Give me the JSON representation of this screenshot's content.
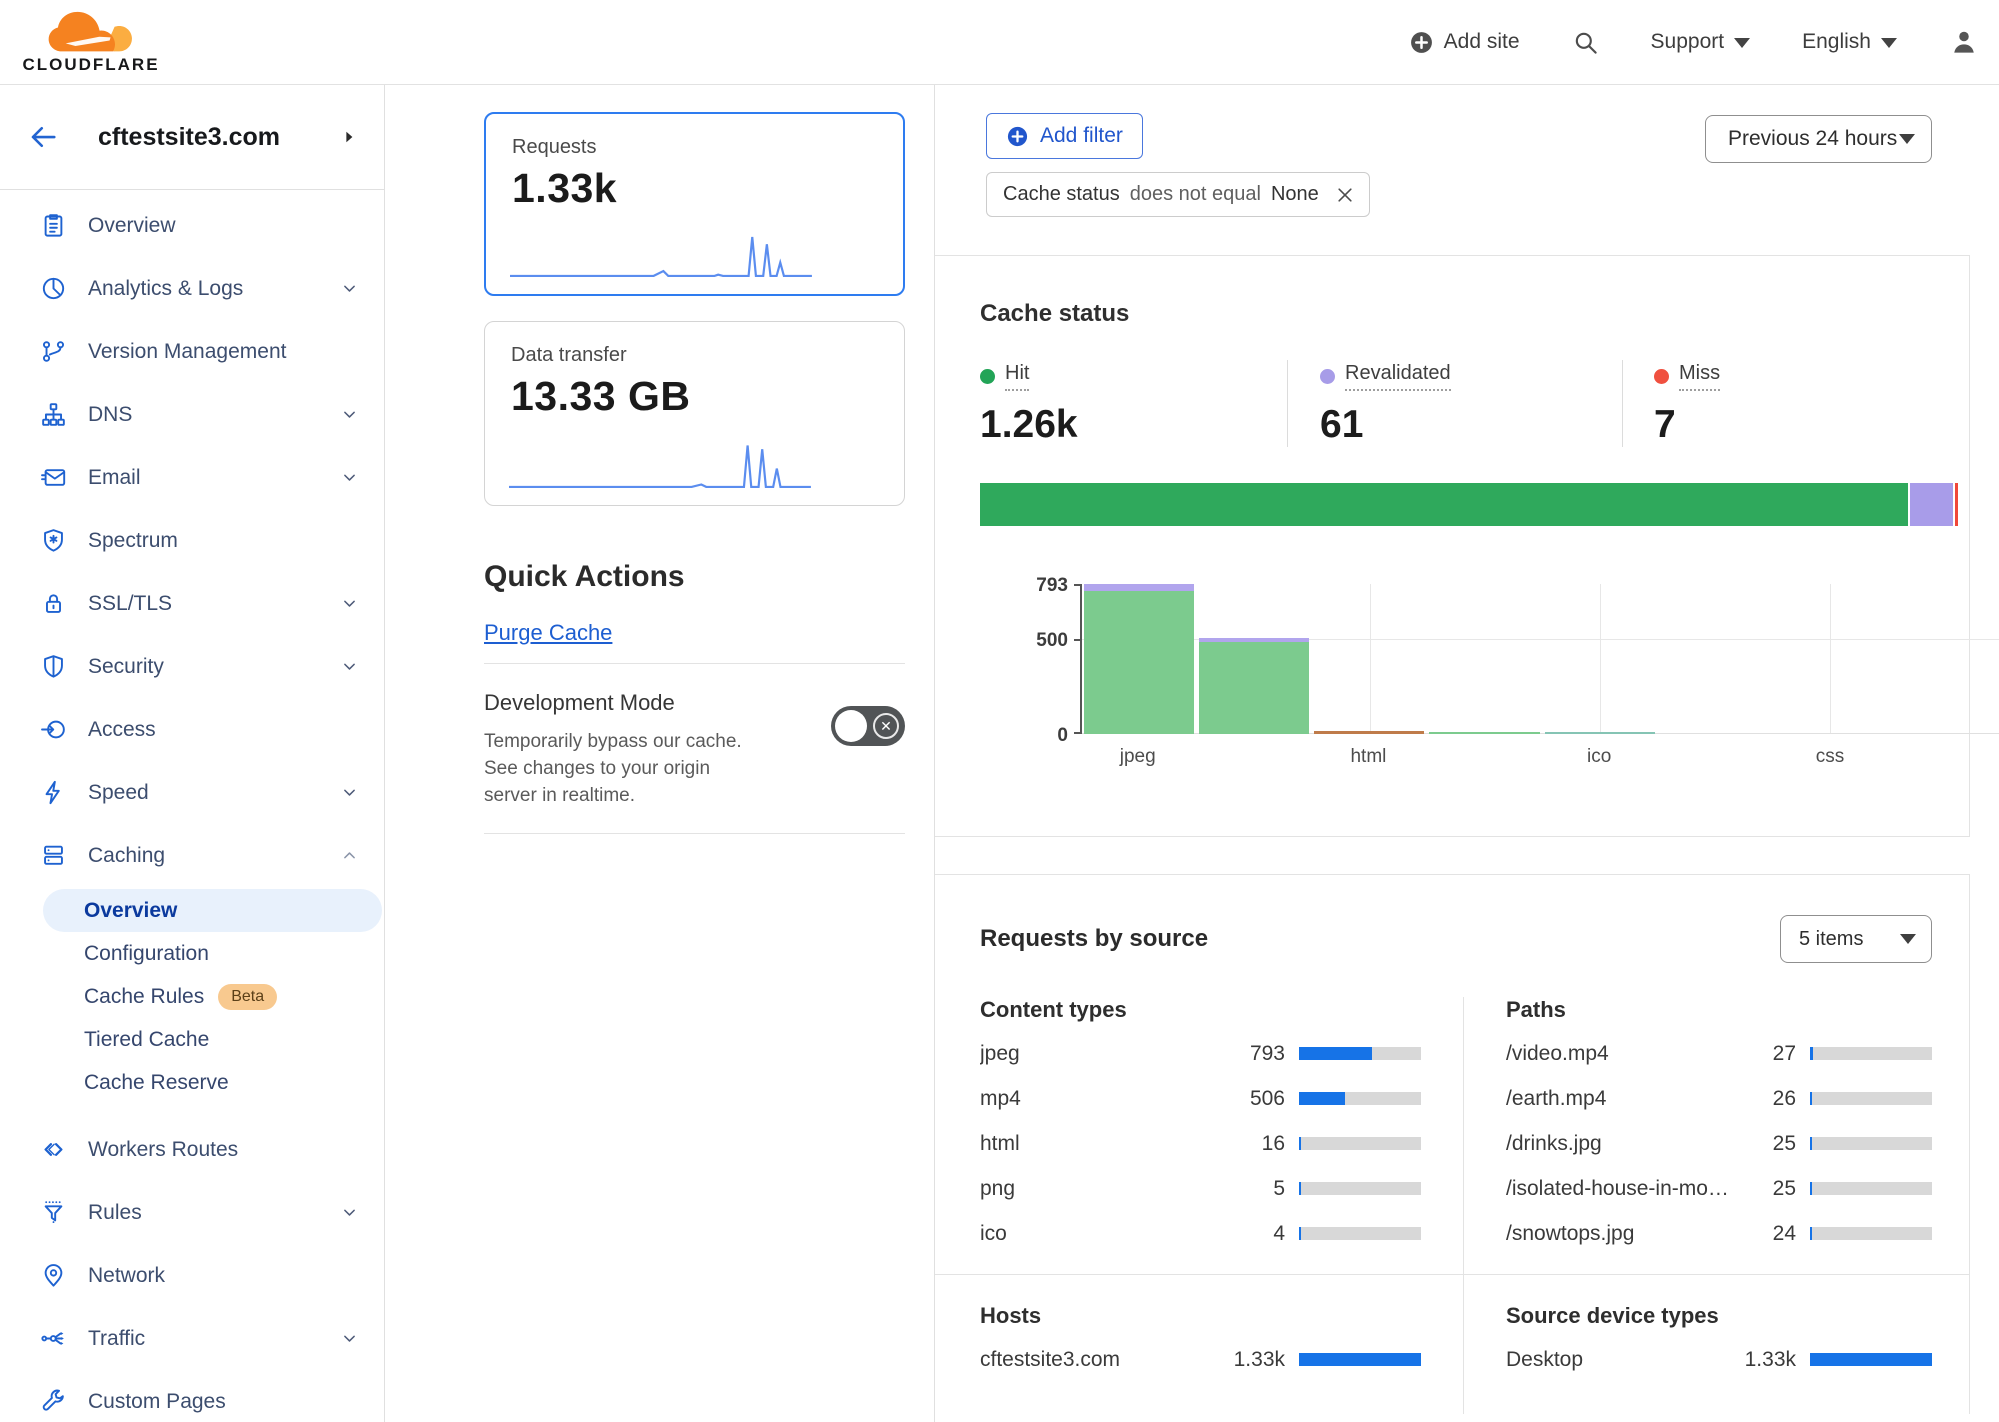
{
  "header": {
    "logo_text": "CLOUDFLARE",
    "add_site_label": "Add site",
    "support_label": "Support",
    "language_label": "English"
  },
  "sidebar": {
    "back_site": "cftestsite3.com",
    "items": [
      {
        "label": "Overview",
        "icon": "clipboard-icon",
        "chevron": false
      },
      {
        "label": "Analytics & Logs",
        "icon": "pie-chart-icon",
        "chevron": true
      },
      {
        "label": "Version Management",
        "icon": "git-branch-icon",
        "chevron": false
      },
      {
        "label": "DNS",
        "icon": "sitemap-icon",
        "chevron": true
      },
      {
        "label": "Email",
        "icon": "envelope-icon",
        "chevron": true
      },
      {
        "label": "Spectrum",
        "icon": "shield-spark-icon",
        "chevron": false
      },
      {
        "label": "SSL/TLS",
        "icon": "lock-icon",
        "chevron": true
      },
      {
        "label": "Security",
        "icon": "shield-icon",
        "chevron": true
      },
      {
        "label": "Access",
        "icon": "login-arrow-icon",
        "chevron": false
      },
      {
        "label": "Speed",
        "icon": "lightning-icon",
        "chevron": true
      },
      {
        "label": "Caching",
        "icon": "server-stack-icon",
        "chevron": "up",
        "expanded": true
      }
    ],
    "caching_children": [
      {
        "label": "Overview",
        "active": true
      },
      {
        "label": "Configuration"
      },
      {
        "label": "Cache Rules",
        "badge": "Beta"
      },
      {
        "label": "Tiered Cache"
      },
      {
        "label": "Cache Reserve"
      }
    ],
    "items_bottom": [
      {
        "label": "Workers Routes",
        "icon": "code-brackets-icon",
        "chevron": false
      },
      {
        "label": "Rules",
        "icon": "funnel-icon",
        "chevron": true
      },
      {
        "label": "Network",
        "icon": "map-pin-icon",
        "chevron": false
      },
      {
        "label": "Traffic",
        "icon": "share-network-icon",
        "chevron": true
      },
      {
        "label": "Custom Pages",
        "icon": "wrench-icon",
        "chevron": false
      }
    ]
  },
  "metric_cards": {
    "requests": {
      "label": "Requests",
      "value": "1.33k"
    },
    "data_transfer": {
      "label": "Data transfer",
      "value": "13.33 GB"
    }
  },
  "quick_actions": {
    "title": "Quick Actions",
    "purge_cache_label": "Purge Cache",
    "dev_mode_title": "Development Mode",
    "dev_mode_description": "Temporarily bypass our cache. See changes to your origin server in realtime.",
    "dev_mode_state": "off"
  },
  "filter_bar": {
    "add_filter_label": "Add filter",
    "chip_field": "Cache status",
    "chip_operator": "does not equal",
    "chip_value": "None",
    "time_range_label": "Previous 24 hours"
  },
  "cache_status": {
    "title": "Cache status",
    "stats": [
      {
        "label": "Hit",
        "value": "1.26k",
        "color": "#22a457"
      },
      {
        "label": "Revalidated",
        "value": "61",
        "color": "#a79ce8"
      },
      {
        "label": "Miss",
        "value": "7",
        "color": "#f0503f"
      }
    ]
  },
  "requests_by_source": {
    "title": "Requests by source",
    "items_selector": "5 items",
    "content_types_title": "Content types",
    "paths_title": "Paths",
    "hosts_title": "Hosts",
    "devices_title": "Source device types"
  },
  "chart_data": [
    {
      "id": "requests-sparkline",
      "type": "line",
      "title": "Requests",
      "total": "1.33k",
      "x_range": "previous 24 hours",
      "shape": "mostly flat near zero with a few tall spikes near the end"
    },
    {
      "id": "data-transfer-sparkline",
      "type": "line",
      "title": "Data transfer",
      "total": "13.33 GB",
      "x_range": "previous 24 hours",
      "shape": "mostly flat near zero with a few tall spikes near the end"
    },
    {
      "id": "cache-status-stacked-bar",
      "type": "bar",
      "orientation": "horizontal",
      "stacked": true,
      "segments": [
        {
          "name": "Hit",
          "value": 1260,
          "color": "#2fa95c"
        },
        {
          "name": "Revalidated",
          "value": 61,
          "color": "#a89ce9"
        },
        {
          "name": "Miss",
          "value": 7,
          "color": "#f0483a"
        }
      ]
    },
    {
      "id": "cache-status-by-content-type",
      "type": "bar",
      "stacked": true,
      "ymax": 793,
      "yticks": [
        793,
        500,
        0
      ],
      "gridline_slots": [
        2,
        4,
        6
      ],
      "slots": [
        {
          "label": "jpeg",
          "show_label": true,
          "segments": [
            {
              "name": "Hit",
              "value": 755,
              "color": "#7ccb8e"
            },
            {
              "name": "Revalidated",
              "value": 38,
              "color": "#b1a5ed"
            }
          ]
        },
        {
          "label": "mp4",
          "show_label": false,
          "segments": [
            {
              "name": "Hit",
              "value": 485,
              "color": "#7ccb8e"
            },
            {
              "name": "Revalidated",
              "value": 21,
              "color": "#b1a5ed"
            }
          ]
        },
        {
          "label": "html",
          "show_label": true,
          "segments": [
            {
              "name": "Hit+Miss",
              "value": 16,
              "color": "#bf7b4a"
            }
          ]
        },
        {
          "label": "png",
          "show_label": false,
          "segments": [
            {
              "name": "Hit",
              "value": 5,
              "color": "#7ccb8e"
            }
          ]
        },
        {
          "label": "ico",
          "show_label": true,
          "segments": [
            {
              "name": "Hit",
              "value": 4,
              "color": "#85c4b4"
            }
          ]
        },
        {
          "label": "",
          "show_label": false,
          "segments": []
        },
        {
          "label": "css",
          "show_label": true,
          "segments": []
        },
        {
          "label": "",
          "show_label": false,
          "segments": []
        }
      ]
    },
    {
      "id": "content-types",
      "type": "table",
      "rows": [
        {
          "label": "jpeg",
          "value": "793",
          "pct": 60
        },
        {
          "label": "mp4",
          "value": "506",
          "pct": 38
        },
        {
          "label": "html",
          "value": "16",
          "pct": 1.3
        },
        {
          "label": "png",
          "value": "5",
          "pct": 0.5
        },
        {
          "label": "ico",
          "value": "4",
          "pct": 0.4
        }
      ]
    },
    {
      "id": "paths",
      "type": "table",
      "rows": [
        {
          "label": "/video.mp4",
          "value": "27",
          "pct": 2.1
        },
        {
          "label": "/earth.mp4",
          "value": "26",
          "pct": 2.0
        },
        {
          "label": "/drinks.jpg",
          "value": "25",
          "pct": 1.9
        },
        {
          "label": "/isolated-house-in-mo…",
          "value": "25",
          "pct": 1.9
        },
        {
          "label": "/snowtops.jpg",
          "value": "24",
          "pct": 1.8
        }
      ]
    },
    {
      "id": "hosts",
      "type": "table",
      "rows": [
        {
          "label": "cftestsite3.com",
          "value": "1.33k",
          "pct": 100
        }
      ]
    },
    {
      "id": "source-device-types",
      "type": "table",
      "rows": [
        {
          "label": "Desktop",
          "value": "1.33k",
          "pct": 100
        }
      ]
    }
  ]
}
